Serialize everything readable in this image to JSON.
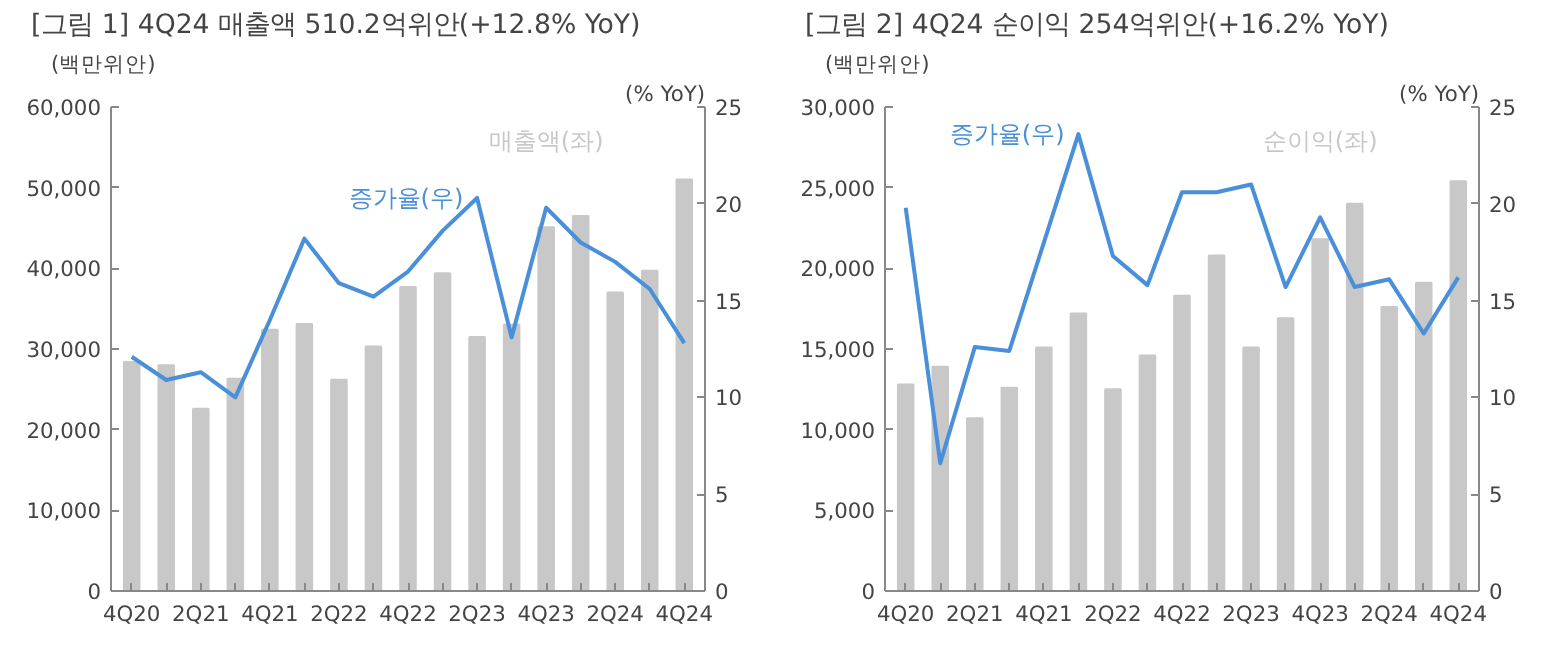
{
  "chart_data": [
    {
      "type": "bar",
      "title": "[그림 1] 4Q24 매출액 510.2억위안(+12.8% YoY)",
      "ylabel": "(백만위안)",
      "y2label": "(% YoY)",
      "categories": [
        "4Q20",
        null,
        "2Q21",
        null,
        "4Q21",
        null,
        "2Q22",
        null,
        "4Q22",
        null,
        "2Q23",
        null,
        "4Q23",
        null,
        "2Q24",
        null,
        "4Q24"
      ],
      "series": [
        {
          "name": "매출액(좌)",
          "color": "#c8c8c8",
          "values": [
            28400,
            28000,
            22600,
            26300,
            32400,
            33100,
            26200,
            30300,
            37700,
            39400,
            31500,
            33000,
            45100,
            46500,
            37000,
            39700,
            51000
          ]
        },
        {
          "name": "증가율(우)",
          "color": "#4a8fd9",
          "type": "line",
          "axis": "y2",
          "values": [
            12.1,
            10.9,
            11.3,
            10.0,
            14.0,
            18.2,
            15.9,
            15.2,
            16.5,
            18.6,
            20.3,
            13.1,
            19.8,
            18.0,
            17.0,
            15.6,
            12.8
          ]
        }
      ],
      "ylim": [
        0,
        60000
      ],
      "yticks": [
        {
          "value": 0,
          "label": "0"
        },
        {
          "value": 10000,
          "label": "10,000"
        },
        {
          "value": 20000,
          "label": "20,000"
        },
        {
          "value": 30000,
          "label": "30,000"
        },
        {
          "value": 40000,
          "label": "40,000"
        },
        {
          "value": 50000,
          "label": "50,000"
        },
        {
          "value": 60000,
          "label": "60,000"
        }
      ],
      "y2lim": [
        0,
        25
      ],
      "y2ticks": [
        0,
        5,
        10,
        15,
        20,
        25
      ],
      "grid": false,
      "legend": false
    },
    {
      "type": "bar",
      "title": "[그림 2] 4Q24 순이익 254억위안(+16.2% YoY)",
      "ylabel": "(백만위안)",
      "y2label": "(% YoY)",
      "categories": [
        "4Q20",
        null,
        "2Q21",
        null,
        "4Q21",
        null,
        "2Q22",
        null,
        "4Q22",
        null,
        "2Q23",
        null,
        "4Q23",
        null,
        "2Q24",
        null,
        "4Q24"
      ],
      "series": [
        {
          "name": "순이익(좌)",
          "color": "#c8c8c8",
          "values": [
            12800,
            13900,
            10700,
            12600,
            15100,
            17200,
            12500,
            14600,
            18300,
            20800,
            15100,
            16900,
            21800,
            24000,
            17600,
            19100,
            25400
          ]
        },
        {
          "name": "증가율(우)",
          "color": "#4a8fd9",
          "type": "line",
          "axis": "y2",
          "values": [
            19.8,
            6.6,
            12.6,
            12.4,
            18.0,
            23.6,
            17.3,
            15.8,
            20.6,
            20.6,
            21.0,
            15.7,
            19.3,
            15.7,
            16.1,
            13.3,
            16.2
          ]
        }
      ],
      "ylim": [
        0,
        30000
      ],
      "yticks": [
        {
          "value": 0,
          "label": "0"
        },
        {
          "value": 5000,
          "label": "5,000"
        },
        {
          "value": 10000,
          "label": "10,000"
        },
        {
          "value": 15000,
          "label": "15,000"
        },
        {
          "value": 20000,
          "label": "20,000"
        },
        {
          "value": 25000,
          "label": "25,000"
        },
        {
          "value": 30000,
          "label": "30,000"
        }
      ],
      "y2lim": [
        0,
        25
      ],
      "y2ticks": [
        0,
        5,
        10,
        15,
        20,
        25
      ],
      "grid": false,
      "legend": false
    }
  ]
}
